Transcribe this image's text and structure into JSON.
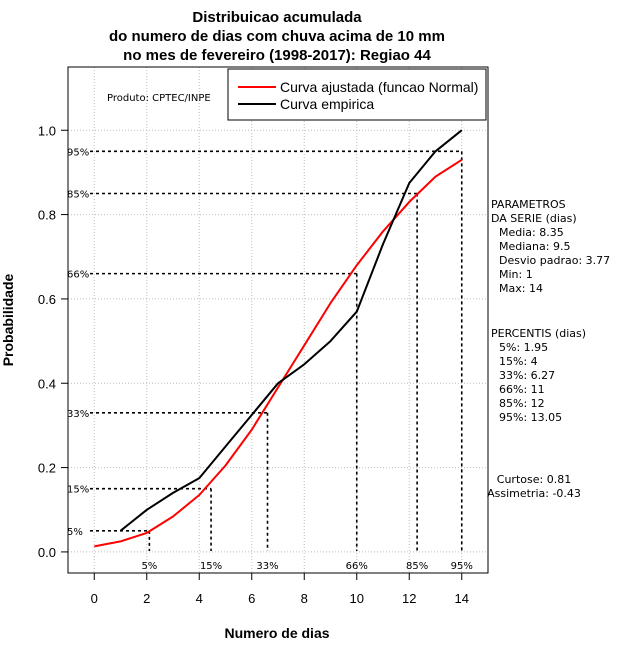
{
  "chart_data": {
    "type": "line",
    "title_lines": [
      "Distribuicao acumulada",
      "do numero de dias com chuva acima de 10 mm",
      "no mes de fevereiro (1998-2017): Regiao 44"
    ],
    "xlabel": "Numero de dias",
    "ylabel": "Probabilidade",
    "xlim": [
      -1,
      15
    ],
    "ylim": [
      -0.05,
      1.15
    ],
    "x_ticks": [
      0,
      2,
      4,
      6,
      8,
      10,
      12,
      14
    ],
    "y_ticks": [
      0.0,
      0.2,
      0.4,
      0.6,
      0.8,
      1.0
    ],
    "y_tick_labels": [
      "0.0",
      "0.2",
      "0.4",
      "0.6",
      "0.8",
      "1.0"
    ],
    "grid": true,
    "credit": "Produto: CPTEC/INPE",
    "legend": {
      "position": "top-right",
      "entries": [
        {
          "label": "Curva ajustada (funcao Normal)",
          "color": "#ff0000"
        },
        {
          "label": "Curva empirica",
          "color": "#000000"
        }
      ]
    },
    "series": [
      {
        "name": "Curva ajustada (funcao Normal)",
        "color": "#ff0000",
        "x": [
          0,
          1,
          2,
          3,
          4,
          5,
          6,
          7,
          8,
          9,
          10,
          11,
          12,
          13,
          14
        ],
        "y": [
          0.013,
          0.025,
          0.045,
          0.084,
          0.135,
          0.205,
          0.29,
          0.39,
          0.49,
          0.59,
          0.68,
          0.76,
          0.83,
          0.89,
          0.93
        ]
      },
      {
        "name": "Curva empirica",
        "color": "#000000",
        "x": [
          1,
          2,
          3,
          4,
          5,
          6,
          7,
          8,
          9,
          10,
          11,
          12,
          13,
          14
        ],
        "y": [
          0.05,
          0.1,
          0.14,
          0.175,
          0.25,
          0.325,
          0.4,
          0.445,
          0.5,
          0.57,
          0.73,
          0.875,
          0.95,
          1.0
        ]
      }
    ],
    "percentile_markers": [
      {
        "label": "5%",
        "y_label": "5%",
        "x": 1.95,
        "p": 0.05
      },
      {
        "label": "15%",
        "y_label": "15%",
        "x": 4,
        "p": 0.15
      },
      {
        "label": "33%",
        "y_label": "33%",
        "x": 6.27,
        "p": 0.33
      },
      {
        "label": "66%",
        "y_label": "66%",
        "x": 11,
        "p": 0.66
      },
      {
        "label": "85%",
        "y_label": "85%",
        "x": 12,
        "p": 0.85
      },
      {
        "label": "95%",
        "y_label": "95%",
        "x": 13.05,
        "p": 0.95
      }
    ],
    "marker_draw_x": [
      2.1,
      4.45,
      6.6,
      10.0,
      12.3,
      14.0
    ],
    "parameters": {
      "heading1": "PARAMETROS",
      "heading2": "DA SERIE (dias)",
      "lines": [
        "Media: 8.35",
        "Mediana: 9.5",
        "Desvio padrao: 3.77",
        "Min: 1",
        "Max: 14"
      ]
    },
    "percentis": {
      "heading": "PERCENTIS (dias)",
      "lines": [
        "5%: 1.95",
        "15%: 4",
        "33%: 6.27",
        "66%: 11",
        "85%: 12",
        "95%: 13.05"
      ]
    },
    "moments": {
      "lines": [
        "Curtose: 0.81",
        "Assimetria: -0.43"
      ]
    }
  }
}
